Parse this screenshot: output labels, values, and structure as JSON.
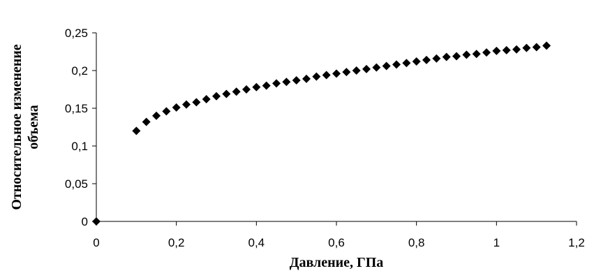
{
  "chart_data": {
    "type": "scatter",
    "title": "",
    "xlabel": "Давление, ГПа",
    "ylabel_lines": [
      "Относительное изменение",
      "объема"
    ],
    "xlim": [
      0,
      1.2
    ],
    "ylim": [
      0,
      0.25
    ],
    "x_ticks": [
      0,
      0.2,
      0.4,
      0.6,
      0.8,
      1,
      1.2
    ],
    "x_tick_labels": [
      "0",
      "0,2",
      "0,4",
      "0,6",
      "0,8",
      "1",
      "1,2"
    ],
    "y_ticks": [
      0,
      0.05,
      0.1,
      0.15,
      0.2,
      0.25
    ],
    "y_tick_labels": [
      "0",
      "0,05",
      "0,1",
      "0,15",
      "0,2",
      "0,25"
    ],
    "grid": false,
    "legend": "none",
    "marker": "diamond",
    "marker_color": "#000000",
    "series": [
      {
        "x": [
          0,
          0.1,
          0.125,
          0.15,
          0.175,
          0.2,
          0.225,
          0.25,
          0.275,
          0.3,
          0.325,
          0.35,
          0.375,
          0.4,
          0.425,
          0.45,
          0.475,
          0.5,
          0.525,
          0.55,
          0.575,
          0.6,
          0.625,
          0.65,
          0.675,
          0.7,
          0.725,
          0.75,
          0.775,
          0.8,
          0.825,
          0.85,
          0.875,
          0.9,
          0.925,
          0.95,
          0.975,
          1.0,
          1.025,
          1.05,
          1.075,
          1.1,
          1.125
        ],
        "y": [
          0,
          0.12,
          0.132,
          0.14,
          0.146,
          0.151,
          0.155,
          0.158,
          0.162,
          0.166,
          0.169,
          0.172,
          0.175,
          0.178,
          0.18,
          0.183,
          0.185,
          0.187,
          0.189,
          0.192,
          0.194,
          0.196,
          0.198,
          0.2,
          0.202,
          0.204,
          0.206,
          0.208,
          0.21,
          0.212,
          0.214,
          0.216,
          0.218,
          0.219,
          0.221,
          0.222,
          0.224,
          0.226,
          0.227,
          0.228,
          0.23,
          0.231,
          0.233
        ]
      }
    ]
  }
}
